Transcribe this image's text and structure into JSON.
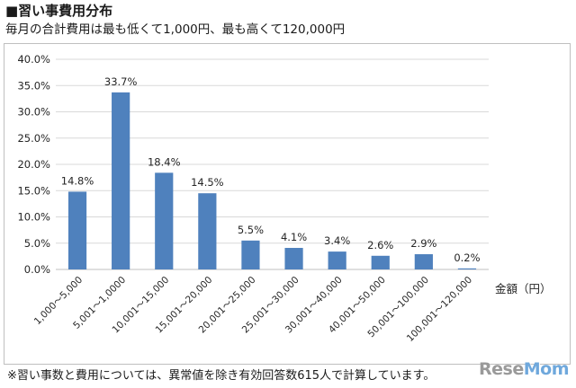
{
  "header": {
    "title": "■習い事費用分布",
    "subtitle": "毎月の合計費用は最も低くて1,000円、最も高くて120,000円"
  },
  "footnote": "※習い事数と費用については、異常値を除き有効回答数615人で計算しています。",
  "logo": {
    "text_main": "Rese",
    "text_accent": "Mom"
  },
  "colors": {
    "bar": "#4f81bd",
    "grid": "#d9d9d9",
    "axis": "#bfbfbf"
  },
  "chart_data": {
    "type": "bar",
    "title": "",
    "xlabel": "金額（円）",
    "ylabel": "",
    "ylim": [
      0,
      40
    ],
    "yticks": [
      "0.0%",
      "5.0%",
      "10.0%",
      "15.0%",
      "20.0%",
      "25.0%",
      "30.0%",
      "35.0%",
      "40.0%"
    ],
    "grid": true,
    "categories": [
      "1,000～5,000",
      "5,001～1,0000",
      "10,001～15,000",
      "15,001～20,000",
      "20,001～25,000",
      "25,001～30,000",
      "30,001～40,000",
      "40,001～50,000",
      "50,001～100,000",
      "100,001～120,000"
    ],
    "values": [
      14.8,
      33.7,
      18.4,
      14.5,
      5.5,
      4.1,
      3.4,
      2.6,
      2.9,
      0.2
    ],
    "value_labels": [
      "14.8%",
      "33.7%",
      "18.4%",
      "14.5%",
      "5.5%",
      "4.1%",
      "3.4%",
      "2.6%",
      "2.9%",
      "0.2%"
    ]
  }
}
